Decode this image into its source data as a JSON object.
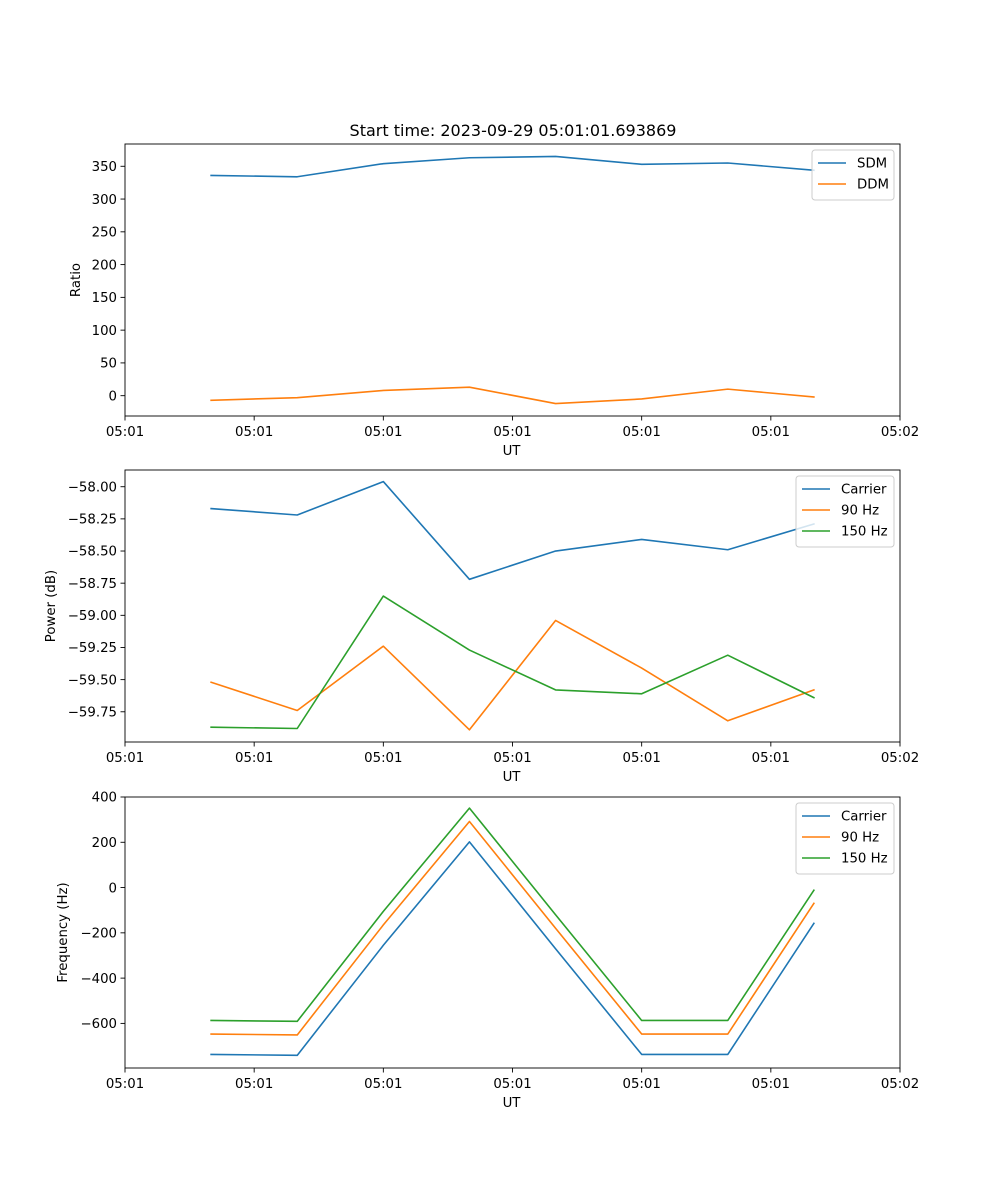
{
  "figure": {
    "title": "Start time: 2023-09-29 05:01:01.693869"
  },
  "chart_data": [
    {
      "type": "line",
      "title": "Start time: 2023-09-29 05:01:01.693869",
      "xlabel": "UT",
      "ylabel": "Ratio",
      "x": [
        1,
        2,
        3,
        4,
        5,
        6,
        7,
        8
      ],
      "xlim": [
        0,
        9
      ],
      "x_ticks": [
        0,
        1.5,
        3,
        4.5,
        6,
        7.5,
        9
      ],
      "x_tick_labels": [
        "05:01",
        "05:01",
        "05:01",
        "05:01",
        "05:01",
        "05:01",
        "05:02"
      ],
      "ylim": [
        -31,
        384
      ],
      "y_ticks": [
        0,
        50,
        100,
        150,
        200,
        250,
        300,
        350
      ],
      "y_tick_labels": [
        "0",
        "50",
        "100",
        "150",
        "200",
        "250",
        "300",
        "350"
      ],
      "legend": "top-right",
      "grid": false,
      "series": [
        {
          "name": "SDM",
          "color": "#1f77b4",
          "values": [
            336,
            334,
            354,
            363,
            365,
            353,
            355,
            344
          ]
        },
        {
          "name": "DDM",
          "color": "#ff7f0e",
          "values": [
            -7,
            -3,
            8,
            13,
            -12,
            -5,
            10,
            -2
          ]
        }
      ]
    },
    {
      "type": "line",
      "title": "",
      "xlabel": "UT",
      "ylabel": "Power (dB)",
      "x": [
        1,
        2,
        3,
        4,
        5,
        6,
        7,
        8
      ],
      "xlim": [
        0,
        9
      ],
      "x_ticks": [
        0,
        1.5,
        3,
        4.5,
        6,
        7.5,
        9
      ],
      "x_tick_labels": [
        "05:01",
        "05:01",
        "05:01",
        "05:01",
        "05:01",
        "05:01",
        "05:02"
      ],
      "ylim": [
        -59.985,
        -57.87
      ],
      "y_ticks": [
        -59.75,
        -59.5,
        -59.25,
        -59.0,
        -58.75,
        -58.5,
        -58.25,
        -58.0
      ],
      "y_tick_labels": [
        "−59.75",
        "−59.50",
        "−59.25",
        "−59.00",
        "−58.75",
        "−58.50",
        "−58.25",
        "−58.00"
      ],
      "legend": "top-right",
      "grid": false,
      "series": [
        {
          "name": "Carrier",
          "color": "#1f77b4",
          "values": [
            -58.17,
            -58.22,
            -57.96,
            -58.72,
            -58.5,
            -58.41,
            -58.49,
            -58.29
          ]
        },
        {
          "name": "90 Hz",
          "color": "#ff7f0e",
          "values": [
            -59.52,
            -59.74,
            -59.24,
            -59.89,
            -59.04,
            -59.41,
            -59.82,
            -59.58
          ]
        },
        {
          "name": "150 Hz",
          "color": "#2ca02c",
          "values": [
            -59.87,
            -59.88,
            -58.85,
            -59.27,
            -59.58,
            -59.61,
            -59.31,
            -59.64
          ]
        }
      ]
    },
    {
      "type": "line",
      "title": "",
      "xlabel": "UT",
      "ylabel": "Frequency (Hz)",
      "x": [
        1,
        2,
        3,
        4,
        5,
        6,
        7,
        8
      ],
      "xlim": [
        0,
        9
      ],
      "x_ticks": [
        0,
        1.5,
        3,
        4.5,
        6,
        7.5,
        9
      ],
      "x_tick_labels": [
        "05:01",
        "05:01",
        "05:01",
        "05:01",
        "05:01",
        "05:01",
        "05:02"
      ],
      "ylim": [
        -797,
        400
      ],
      "y_ticks": [
        -600,
        -400,
        -200,
        0,
        200,
        400
      ],
      "y_tick_labels": [
        "−600",
        "−400",
        "−200",
        "0",
        "200",
        "400"
      ],
      "legend": "top-right",
      "grid": false,
      "series": [
        {
          "name": "Carrier",
          "color": "#1f77b4",
          "values": [
            -737,
            -741,
            -255,
            202,
            -270,
            -737,
            -737,
            -158
          ]
        },
        {
          "name": "90 Hz",
          "color": "#ff7f0e",
          "values": [
            -647,
            -651,
            -165,
            292,
            -180,
            -647,
            -647,
            -70
          ]
        },
        {
          "name": "150 Hz",
          "color": "#2ca02c",
          "values": [
            -587,
            -591,
            -105,
            351,
            -120,
            -587,
            -587,
            -12
          ]
        }
      ]
    }
  ]
}
